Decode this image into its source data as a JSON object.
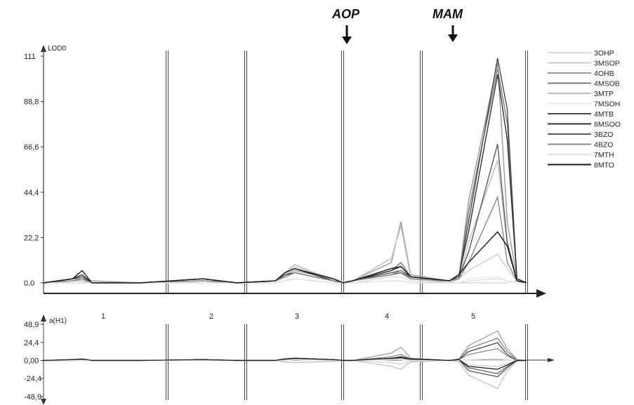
{
  "chart_data": {
    "type": "line",
    "annotations": [
      "AOP",
      "MAM"
    ],
    "chromosomes": [
      "1",
      "2",
      "3",
      "4",
      "5"
    ],
    "lod_panel": {
      "ylabel": "LOD0",
      "yticks": [
        "111",
        "88,8",
        "66,6",
        "44,4",
        "22,2",
        "0,0"
      ],
      "ylim": [
        0,
        111
      ]
    },
    "effect_panel": {
      "ylabel": "a(H1)",
      "yticks": [
        "48,9",
        "24,4",
        "0,00",
        "-24,4",
        "-48,9"
      ],
      "ylim": [
        -48.9,
        48.9
      ]
    },
    "series": [
      {
        "name": "3OHP",
        "color": "#dcdcdc"
      },
      {
        "name": "3MSOP",
        "color": "#cfcfcf"
      },
      {
        "name": "4OHB",
        "color": "#9a9a9a"
      },
      {
        "name": "4MSOB",
        "color": "#7a7a7a"
      },
      {
        "name": "3MTP",
        "color": "#bdbdbd"
      },
      {
        "name": "7MSOH",
        "color": "#e8e8e8"
      },
      {
        "name": "4MTB",
        "color": "#4a4a4a"
      },
      {
        "name": "8MSOO",
        "color": "#333333"
      },
      {
        "name": "3BZO",
        "color": "#5a5a5a"
      },
      {
        "name": "4BZO",
        "color": "#8a8a8a"
      },
      {
        "name": "7MTH",
        "color": "#e0e0e0"
      },
      {
        "name": "8MTO",
        "color": "#1a1a1a"
      }
    ],
    "x": [
      0,
      6,
      8,
      10,
      20,
      33,
      40,
      48,
      50,
      52,
      60,
      62,
      64,
      72,
      74,
      76,
      84,
      86,
      88,
      94,
      96,
      98,
      100
    ],
    "lod_values": {
      "3OHP": [
        0,
        0,
        0,
        0,
        0,
        1,
        0,
        0,
        3,
        5,
        1,
        0,
        0,
        3,
        3,
        1,
        0,
        0,
        0,
        0,
        0,
        1,
        0
      ],
      "3MSOP": [
        0,
        1,
        1,
        0,
        0,
        2,
        0,
        1,
        5,
        8,
        2,
        1,
        1,
        6,
        10,
        2,
        0,
        2,
        6,
        14,
        7,
        1,
        0
      ],
      "4OHB": [
        0,
        2,
        2,
        1,
        0,
        2,
        0,
        1,
        4,
        6,
        2,
        0,
        1,
        10,
        30,
        4,
        1,
        3,
        40,
        108,
        30,
        2,
        0
      ],
      "4MSOB": [
        0,
        1,
        2,
        0,
        0,
        1,
        0,
        1,
        3,
        5,
        1,
        0,
        1,
        6,
        10,
        3,
        1,
        3,
        35,
        105,
        78,
        2,
        0
      ],
      "3MTP": [
        0,
        1,
        1,
        0,
        0,
        1,
        0,
        1,
        5,
        9,
        1,
        0,
        1,
        12,
        28,
        3,
        0,
        2,
        20,
        60,
        18,
        1,
        0
      ],
      "7MSOH": [
        0,
        0,
        0,
        0,
        0,
        0,
        0,
        0,
        1,
        2,
        0,
        0,
        0,
        1,
        1,
        0,
        0,
        0,
        2,
        3,
        1,
        0,
        0
      ],
      "4MTB": [
        0,
        2,
        3,
        0,
        0,
        2,
        0,
        1,
        4,
        5,
        1,
        0,
        1,
        5,
        6,
        3,
        1,
        3,
        30,
        110,
        85,
        2,
        0
      ],
      "8MSOO": [
        0,
        2,
        4,
        0,
        0,
        2,
        0,
        1,
        5,
        7,
        1,
        0,
        1,
        6,
        8,
        3,
        1,
        4,
        25,
        102,
        70,
        2,
        0
      ],
      "3BZO": [
        0,
        1,
        2,
        0,
        0,
        1,
        0,
        1,
        3,
        5,
        1,
        0,
        1,
        4,
        5,
        2,
        1,
        3,
        15,
        68,
        20,
        1,
        0
      ],
      "4BZO": [
        0,
        1,
        2,
        0,
        0,
        1,
        0,
        1,
        3,
        5,
        1,
        0,
        1,
        4,
        6,
        2,
        1,
        2,
        10,
        42,
        10,
        1,
        0
      ],
      "7MTH": [
        0,
        0,
        0,
        0,
        0,
        0,
        0,
        0,
        1,
        2,
        0,
        0,
        0,
        1,
        1,
        0,
        0,
        0,
        1,
        2,
        1,
        0,
        0
      ],
      "8MTO": [
        0,
        2,
        6,
        0,
        0,
        2,
        0,
        1,
        5,
        7,
        2,
        0,
        1,
        7,
        8,
        3,
        1,
        4,
        10,
        25,
        18,
        1,
        0
      ]
    },
    "effect_values": {
      "3OHP": [
        0,
        0,
        0,
        0,
        0,
        1,
        0,
        0,
        2,
        3,
        1,
        0,
        0,
        2,
        3,
        0,
        0,
        0,
        0,
        0,
        0,
        0,
        0
      ],
      "3MSOP": [
        0,
        0,
        0,
        0,
        0,
        1,
        0,
        0,
        -2,
        -3,
        -1,
        0,
        0,
        -3,
        -5,
        -1,
        0,
        0,
        -6,
        -8,
        -4,
        0,
        0
      ],
      "4OHB": [
        0,
        1,
        1,
        0,
        0,
        1,
        0,
        0,
        2,
        3,
        1,
        0,
        0,
        10,
        18,
        3,
        0,
        2,
        20,
        40,
        16,
        1,
        0
      ],
      "4MSOB": [
        0,
        1,
        1,
        0,
        0,
        1,
        0,
        0,
        2,
        3,
        1,
        0,
        0,
        5,
        8,
        2,
        0,
        2,
        16,
        30,
        12,
        1,
        0
      ],
      "3MTP": [
        0,
        0,
        1,
        0,
        0,
        1,
        0,
        0,
        -2,
        -3,
        -1,
        0,
        0,
        -8,
        -12,
        -2,
        0,
        -2,
        -20,
        -38,
        -14,
        -1,
        0
      ],
      "7MSOH": [
        0,
        0,
        0,
        0,
        0,
        0,
        0,
        0,
        1,
        1,
        0,
        0,
        0,
        1,
        1,
        0,
        0,
        0,
        1,
        2,
        1,
        0,
        0
      ],
      "4MTB": [
        0,
        1,
        1,
        0,
        0,
        1,
        0,
        0,
        2,
        3,
        1,
        0,
        0,
        3,
        4,
        2,
        0,
        1,
        -14,
        -22,
        -10,
        0,
        0
      ],
      "8MSOO": [
        0,
        1,
        2,
        0,
        0,
        1,
        0,
        0,
        2,
        3,
        1,
        0,
        0,
        3,
        5,
        2,
        0,
        1,
        12,
        24,
        8,
        0,
        0
      ],
      "3BZO": [
        0,
        0,
        1,
        0,
        0,
        1,
        0,
        0,
        1,
        2,
        0,
        0,
        0,
        2,
        3,
        1,
        0,
        1,
        -10,
        -18,
        -8,
        0,
        0
      ],
      "4BZO": [
        0,
        0,
        1,
        0,
        0,
        1,
        0,
        0,
        1,
        2,
        0,
        0,
        0,
        2,
        3,
        1,
        0,
        1,
        8,
        16,
        6,
        0,
        0
      ],
      "7MTH": [
        0,
        0,
        0,
        0,
        0,
        0,
        0,
        0,
        0,
        1,
        0,
        0,
        0,
        1,
        1,
        0,
        0,
        0,
        1,
        2,
        1,
        0,
        0
      ],
      "8MTO": [
        0,
        1,
        2,
        0,
        0,
        1,
        0,
        0,
        2,
        3,
        1,
        0,
        0,
        3,
        4,
        2,
        0,
        1,
        -8,
        -12,
        -6,
        0,
        0
      ]
    },
    "grid": false
  }
}
